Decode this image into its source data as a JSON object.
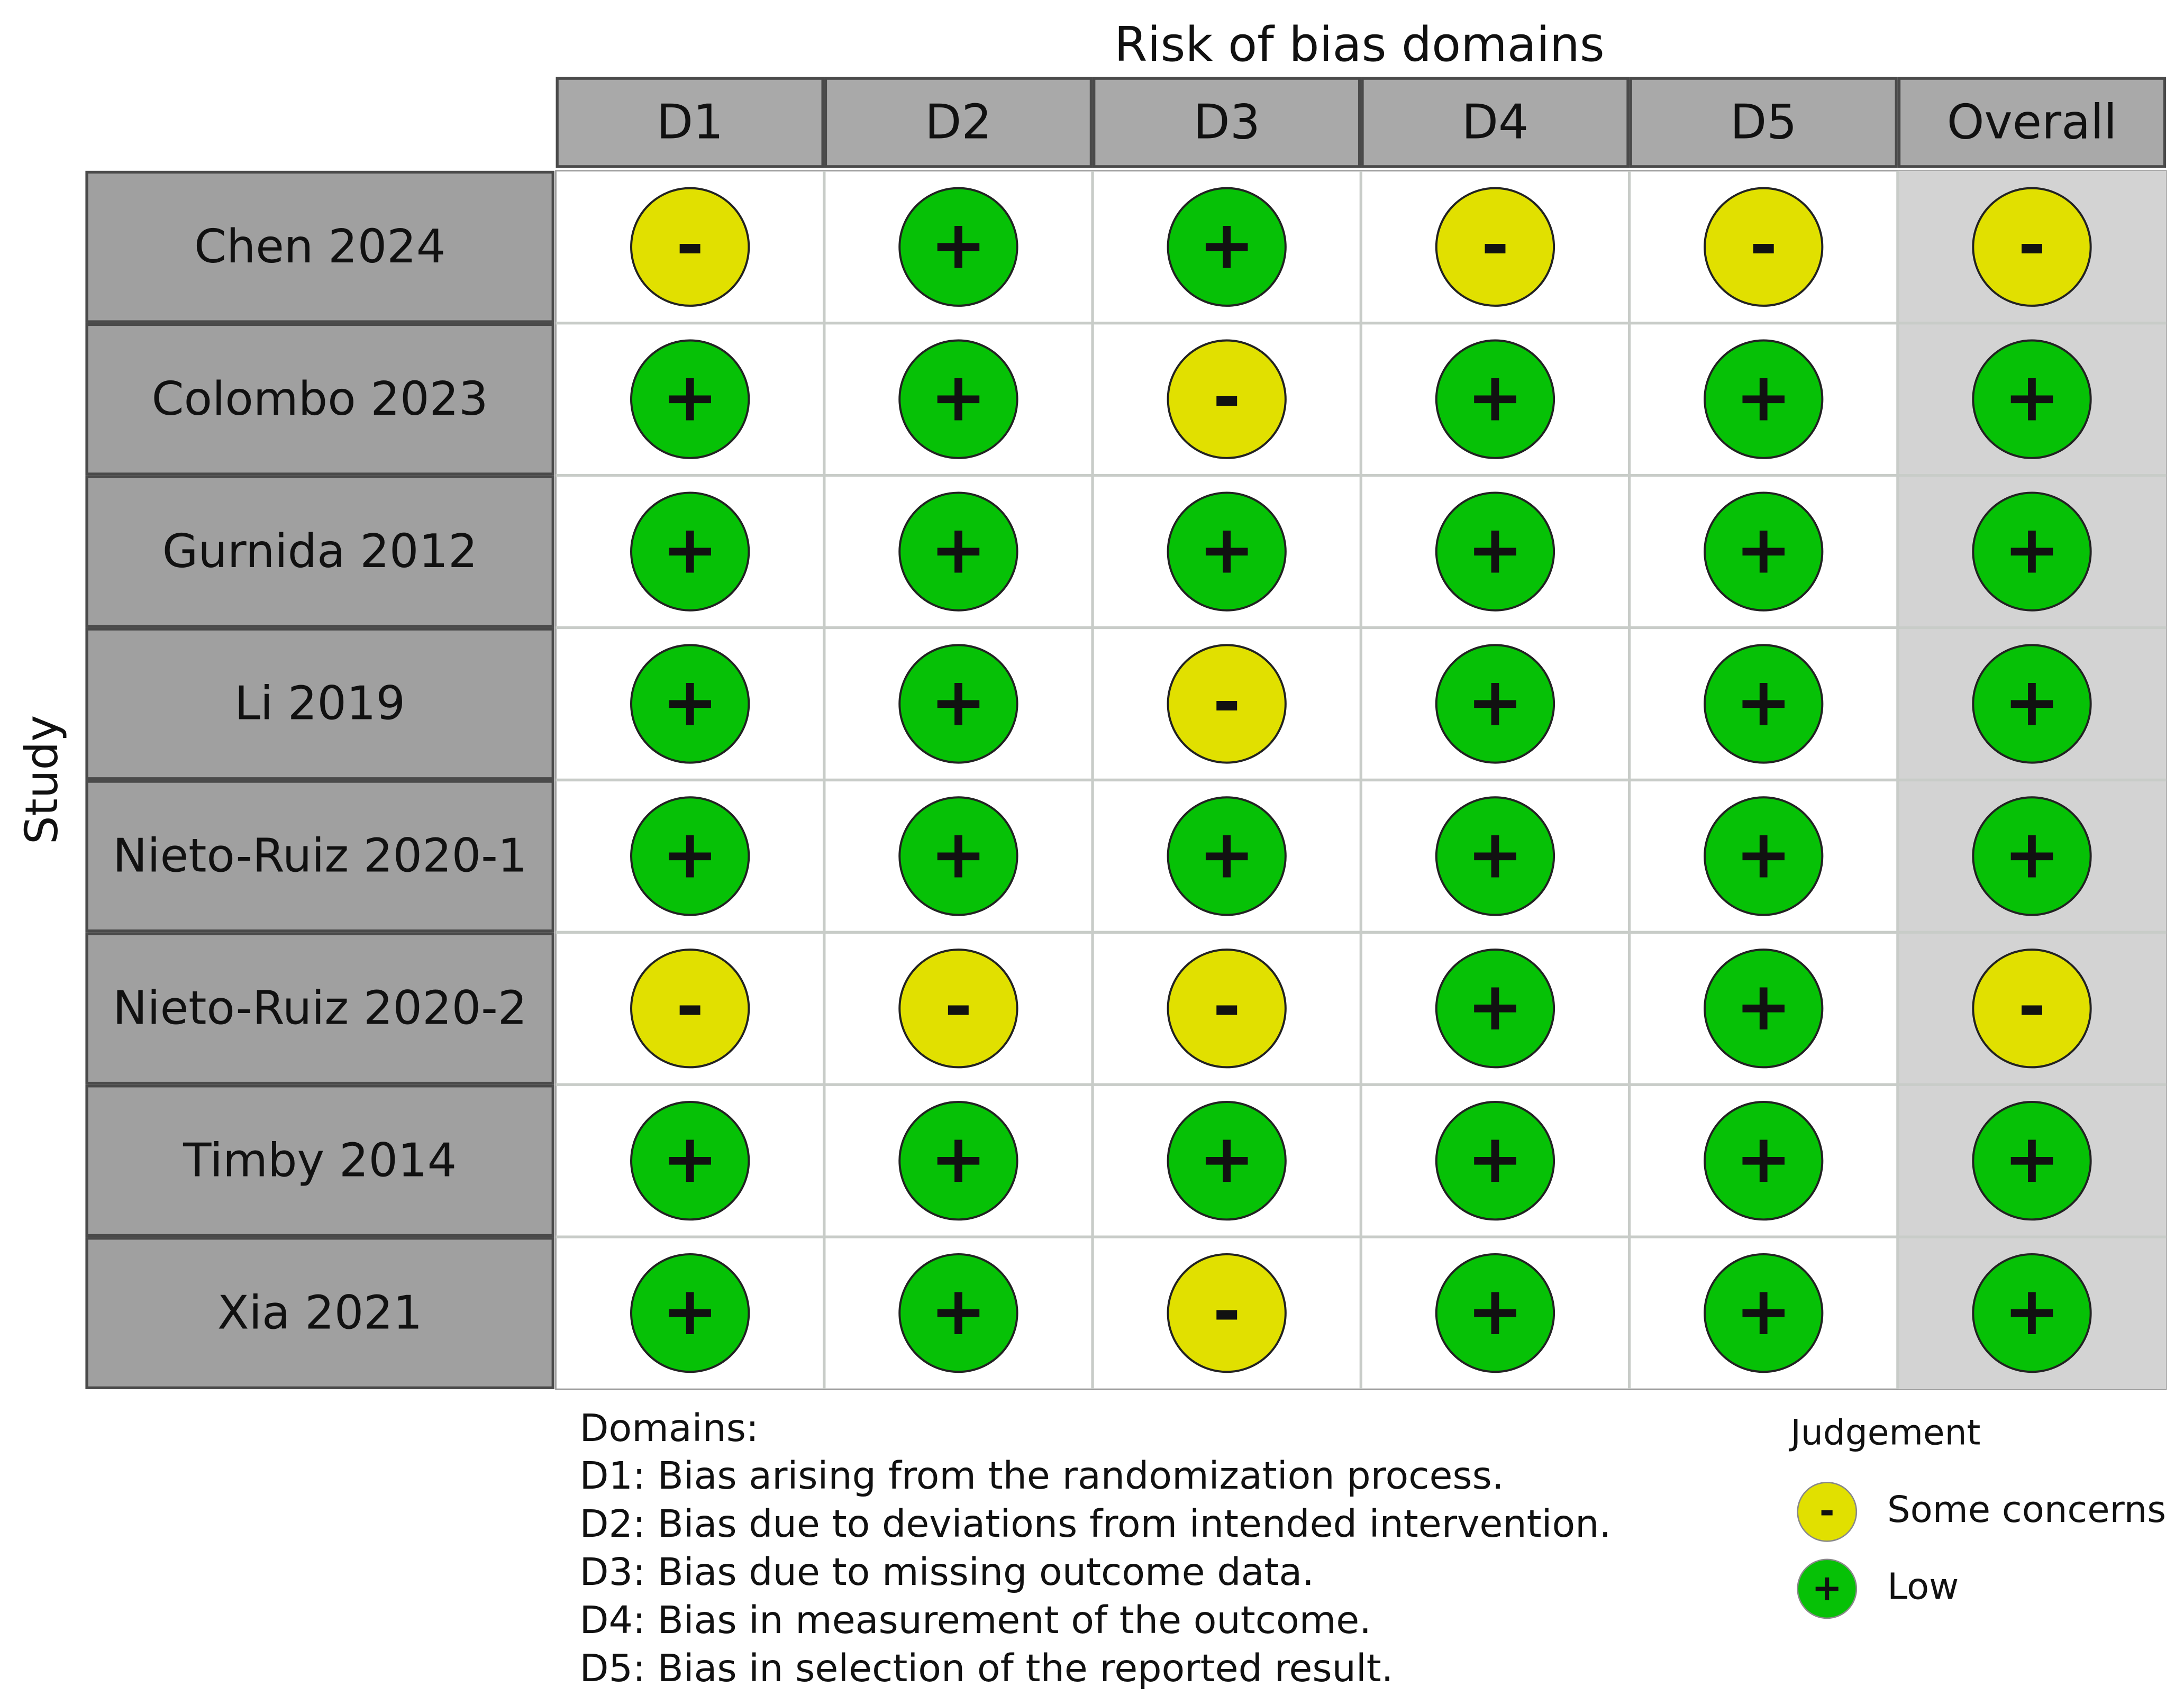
{
  "header": {
    "title": "Risk of bias domains",
    "columns": [
      "D1",
      "D2",
      "D3",
      "D4",
      "D5",
      "Overall"
    ]
  },
  "y_label": "Study",
  "rows": [
    {
      "study": "Chen 2024",
      "judgements": [
        "-",
        "+",
        "+",
        "-",
        "-",
        "-"
      ]
    },
    {
      "study": "Colombo 2023",
      "judgements": [
        "+",
        "+",
        "-",
        "+",
        "+",
        "+"
      ]
    },
    {
      "study": "Gurnida 2012",
      "judgements": [
        "+",
        "+",
        "+",
        "+",
        "+",
        "+"
      ]
    },
    {
      "study": "Li 2019",
      "judgements": [
        "+",
        "+",
        "-",
        "+",
        "+",
        "+"
      ]
    },
    {
      "study": "Nieto-Ruiz 2020-1",
      "judgements": [
        "+",
        "+",
        "+",
        "+",
        "+",
        "+"
      ]
    },
    {
      "study": "Nieto-Ruiz 2020-2",
      "judgements": [
        "-",
        "-",
        "-",
        "+",
        "+",
        "-"
      ]
    },
    {
      "study": "Timby 2014",
      "judgements": [
        "+",
        "+",
        "+",
        "+",
        "+",
        "+"
      ]
    },
    {
      "study": "Xia 2021",
      "judgements": [
        "+",
        "+",
        "-",
        "+",
        "+",
        "+"
      ]
    }
  ],
  "domains": {
    "title": "Domains:",
    "lines": [
      "D1: Bias arising from the randomization process.",
      "D2: Bias due to deviations from intended intervention.",
      "D3: Bias due to missing outcome data.",
      "D4: Bias in measurement of the outcome.",
      "D5: Bias in selection of the reported result."
    ]
  },
  "legend": {
    "title": "Judgement",
    "items": [
      {
        "symbol": "-",
        "label": "Some concerns",
        "color": "#e1e000"
      },
      {
        "symbol": "+",
        "label": "Low",
        "color": "#06c106"
      }
    ]
  }
}
